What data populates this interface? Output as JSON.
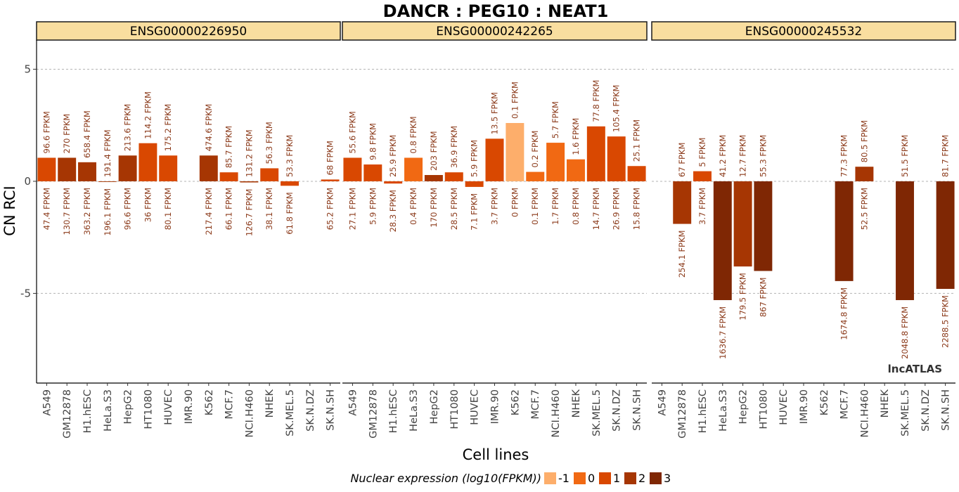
{
  "chart_data": {
    "type": "bar",
    "title": "DANCR : PEG10 : NEAT1",
    "xlabel": "Cell lines",
    "ylabel": "CN RCI",
    "ylim": [
      -9,
      6.3
    ],
    "yticks": [
      5,
      0,
      -5
    ],
    "ytick_labels": [
      "5",
      "0",
      "-5"
    ],
    "grid": "dashed horizontal major lines",
    "categories": [
      "A549",
      "GM12878",
      "H1.hESC",
      "HeLa.S3",
      "HepG2",
      "HT1080",
      "HUVEC",
      "IMR.90",
      "K562",
      "MCF.7",
      "NCI.H460",
      "NHEK",
      "SK.MEL.5",
      "SK.N.DZ",
      "SK.N.SH"
    ],
    "legend": {
      "title": "Nuclear expression (log10(FPKM))",
      "placement": "bottom",
      "levels": [
        {
          "label": "-1",
          "color": "#fdae6b"
        },
        {
          "label": "0",
          "color": "#f16913"
        },
        {
          "label": "1",
          "color": "#d94801"
        },
        {
          "label": "2",
          "color": "#a63603"
        },
        {
          "label": "3",
          "color": "#7f2704"
        }
      ]
    },
    "panels": [
      {
        "name": "ENSG00000226950",
        "values": [
          1.05,
          1.05,
          0.85,
          -0.03,
          1.15,
          1.7,
          1.15,
          null,
          1.15,
          0.4,
          -0.05,
          0.58,
          -0.2,
          null,
          0.08
        ],
        "color_level": [
          1,
          2,
          2,
          2,
          2,
          1,
          1,
          null,
          2,
          1,
          2,
          1,
          1,
          null,
          1
        ],
        "cyto_fpkm": [
          "96.6 FPKM",
          "270 FPKM",
          "658.4 FPKM",
          "191.4 FPKM",
          "213.6 FPKM",
          "114.2 FPKM",
          "175.2 FPKM",
          "",
          "474.6 FPKM",
          "85.7 FPKM",
          "131.2 FPKM",
          "56.3 FPKM",
          "53.3 FPKM",
          "",
          "68 FPKM"
        ],
        "nuclear_fpkm": [
          "47.4 FPKM",
          "130.7 FPKM",
          "363.2 FPKM",
          "196.1 FPKM",
          "96.6 FPKM",
          "36 FPKM",
          "80.1 FPKM",
          "",
          "217.4 FPKM",
          "66.1 FPKM",
          "126.7 FPKM",
          "38.1 FPKM",
          "61.8 FPKM",
          "",
          "65.2 FPKM"
        ]
      },
      {
        "name": "ENSG00000242265",
        "values": [
          1.05,
          0.75,
          -0.1,
          1.05,
          0.28,
          0.4,
          -0.25,
          1.9,
          2.6,
          0.42,
          1.72,
          0.98,
          2.45,
          2.0,
          0.68
        ],
        "color_level": [
          1,
          1,
          1,
          0,
          2,
          1,
          1,
          1,
          -1,
          0,
          0,
          0,
          1,
          1,
          1
        ],
        "cyto_fpkm": [
          "55.6 FPKM",
          "9.8 FPKM",
          "25.9 FPKM",
          "0.8 FPKM",
          "203 FPKM",
          "36.9 FPKM",
          "5.9 FPKM",
          "13.5 FPKM",
          "0.1 FPKM",
          "0.2 FPKM",
          "5.7 FPKM",
          "1.6 FPKM",
          "77.8 FPKM",
          "105.4 FPKM",
          "25.1 FPKM"
        ],
        "nuclear_fpkm": [
          "27.1 FPKM",
          "5.9 FPKM",
          "28.3 FPKM",
          "0.4 FPKM",
          "170 FPKM",
          "28.5 FPKM",
          "7.1 FPKM",
          "3.7 FPKM",
          "0 FPKM",
          "0.1 FPKM",
          "1.7 FPKM",
          "0.8 FPKM",
          "14.7 FPKM",
          "26.9 FPKM",
          "15.8 FPKM"
        ]
      },
      {
        "name": "ENSG00000245532",
        "values": [
          null,
          -1.9,
          0.45,
          -5.3,
          -3.8,
          -4.0,
          null,
          null,
          null,
          -4.45,
          0.65,
          null,
          -5.3,
          null,
          -4.8
        ],
        "color_level": [
          null,
          2,
          1,
          3,
          2,
          3,
          null,
          null,
          null,
          3,
          2,
          null,
          3,
          null,
          3
        ],
        "cyto_fpkm": [
          "",
          "67 FPKM",
          "5 FPKM",
          "41.2 FPKM",
          "12.7 FPKM",
          "55.3 FPKM",
          "",
          "",
          "",
          "77.3 FPKM",
          "80.5 FPKM",
          "",
          "51.5 FPKM",
          "",
          "81.7 FPKM"
        ],
        "nuclear_fpkm": [
          "",
          "254.1 FPKM",
          "3.7 FPKM",
          "1636.7 FPKM",
          "179.5 FPKM",
          "867 FPKM",
          "",
          "",
          "",
          "1674.8 FPKM",
          "52.5 FPKM",
          "",
          "2048.8 FPKM",
          "",
          "2288.5 FPKM"
        ]
      }
    ]
  },
  "watermark": "lncATLAS",
  "colors": {
    "strip_fill": "#f9de9f",
    "label_text": "#8b3a1a",
    "grid": "#b3b3b3"
  }
}
